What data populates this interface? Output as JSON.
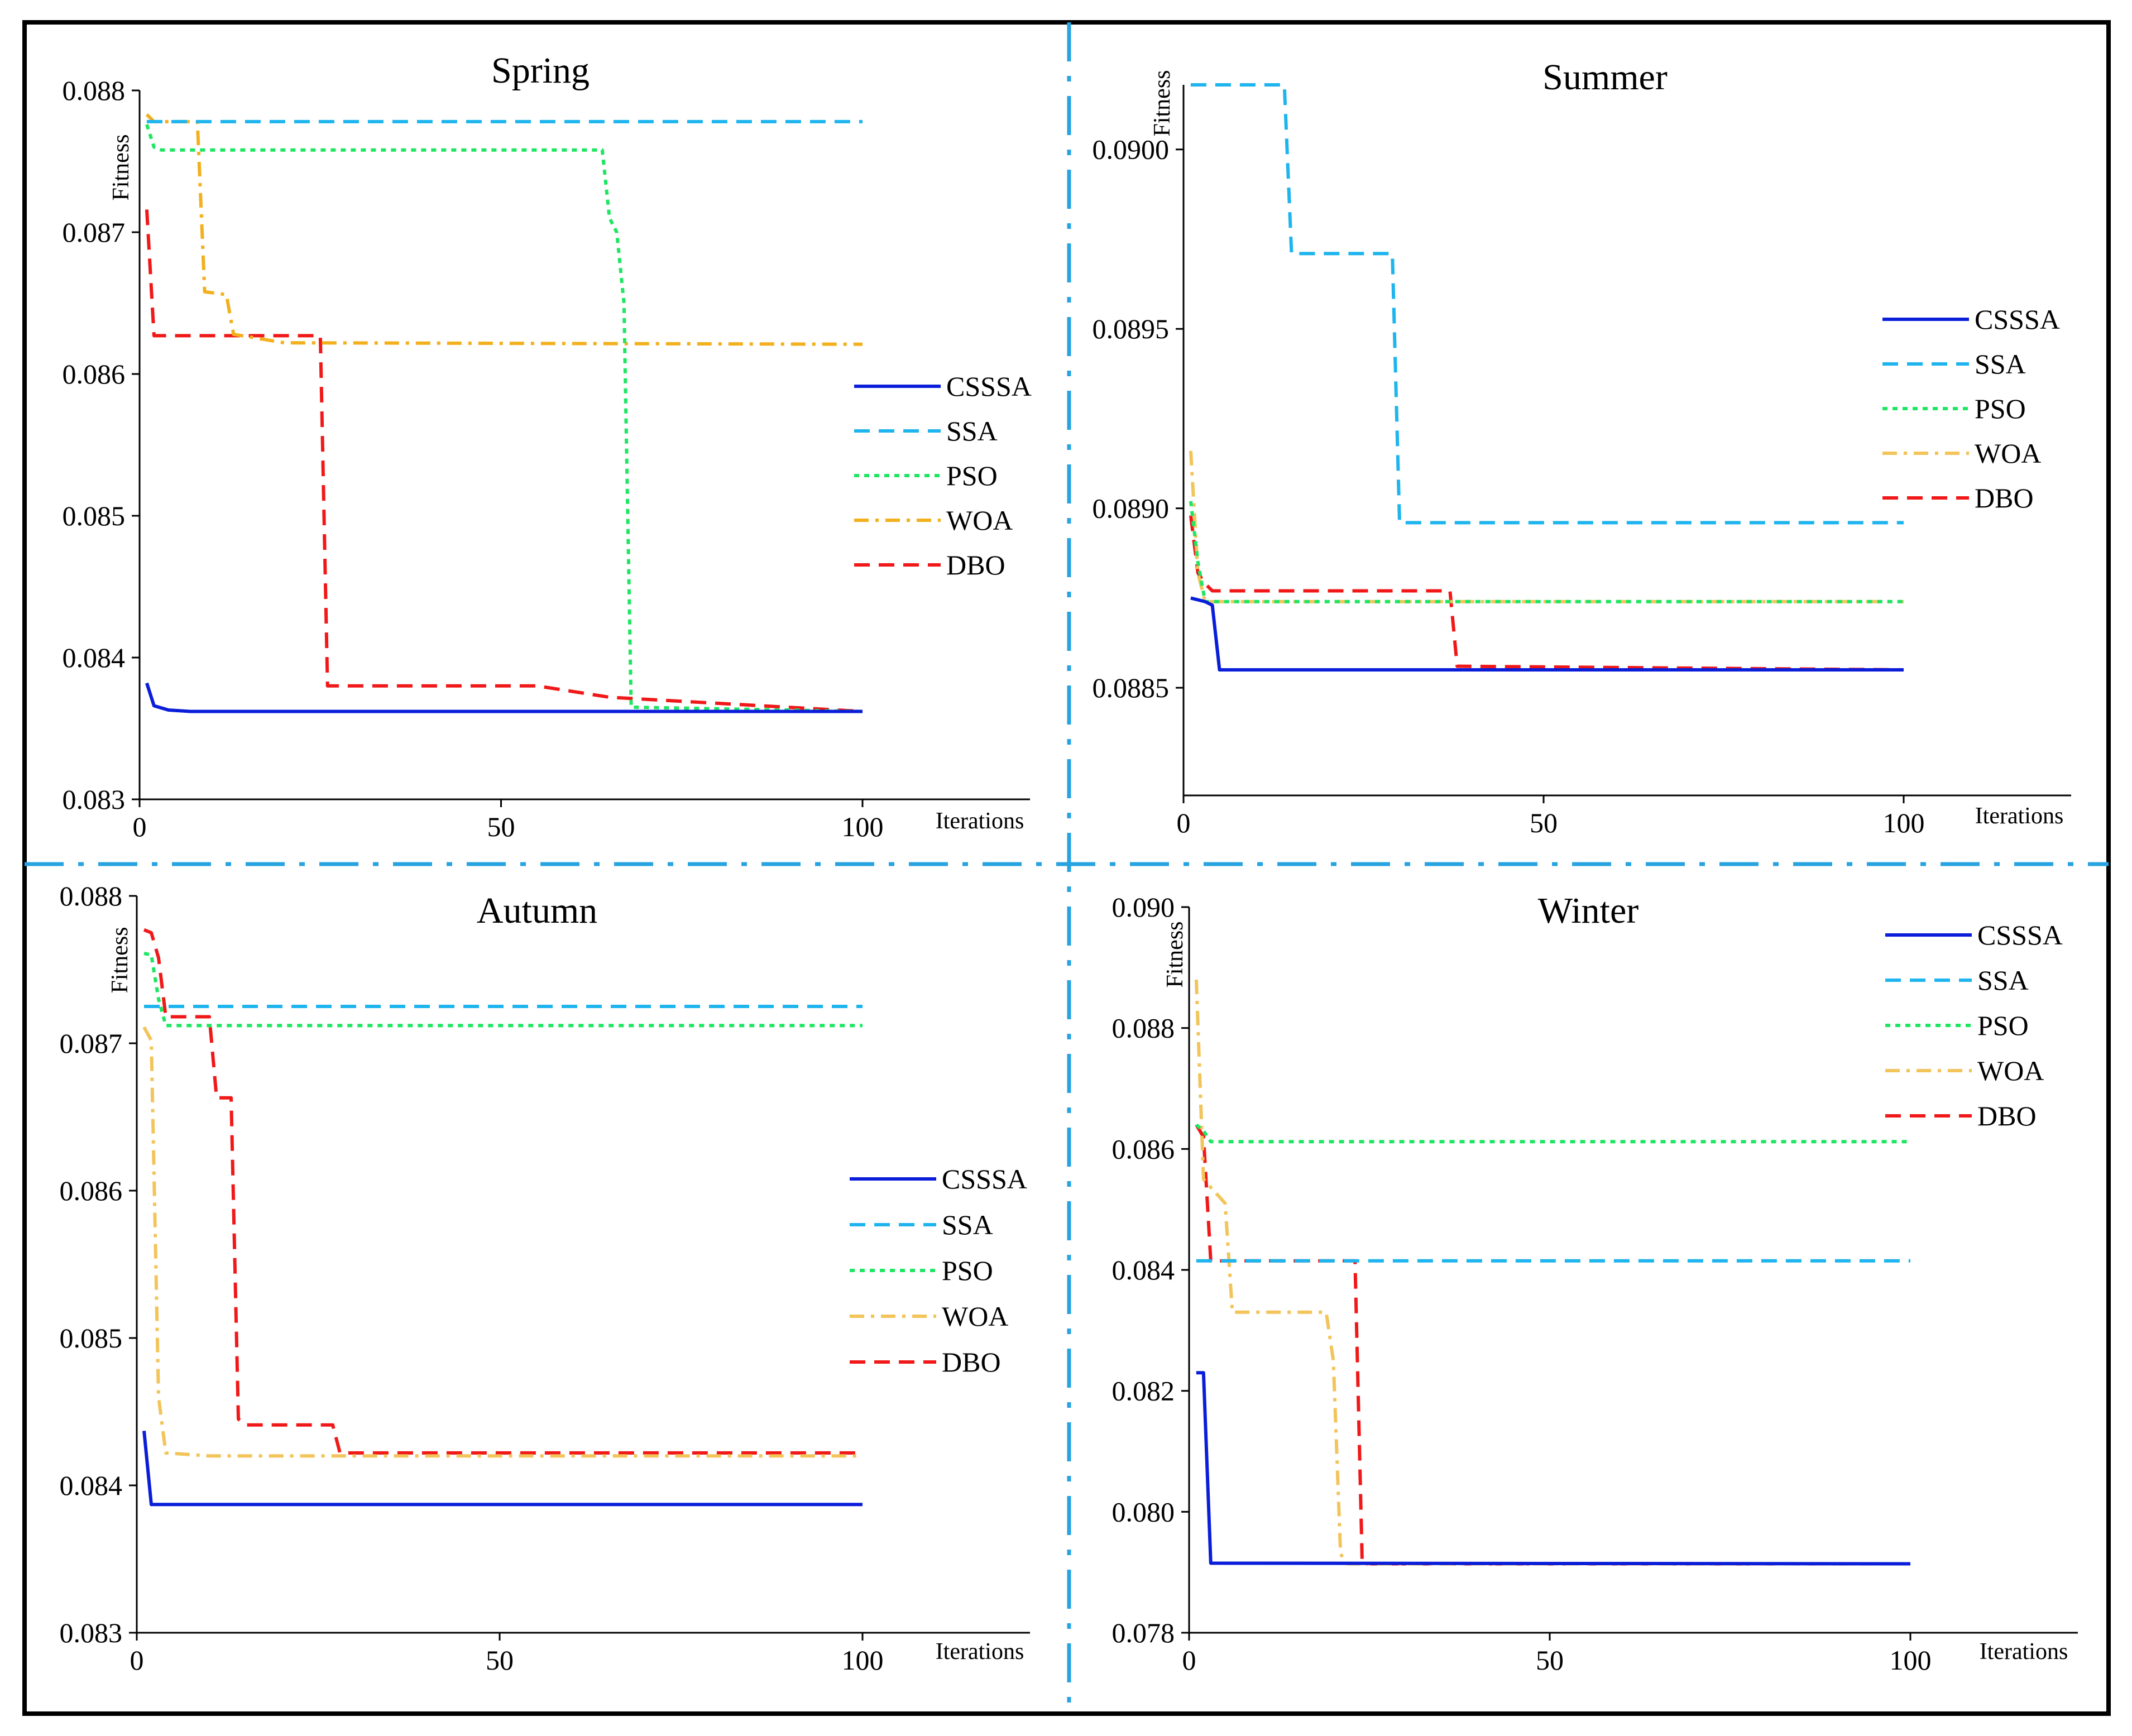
{
  "figure": {
    "separator_color": "#27A3E0",
    "border_color": "#000000"
  },
  "chart_data": [
    {
      "type": "line",
      "title": "Spring",
      "xlabel": "Iterations",
      "ylabel": "Fitness",
      "xlim": [
        0,
        100
      ],
      "ylim": [
        0.083,
        0.088
      ],
      "xticks": [
        0,
        50,
        100
      ],
      "xtick_labels": [
        "0",
        "50",
        "100"
      ],
      "yticks": [
        0.083,
        0.084,
        0.085,
        0.086,
        0.087,
        0.088
      ],
      "ytick_labels": [
        "0.083",
        "0.084",
        "0.085",
        "0.086",
        "0.087",
        "0.088"
      ],
      "legend_position": "right",
      "series": [
        {
          "name": "CSSSA",
          "color": "#0A1ED9",
          "dash": "solid",
          "x": [
            1,
            2,
            4,
            7,
            100
          ],
          "y": [
            0.08382,
            0.08366,
            0.08363,
            0.08362,
            0.08362
          ]
        },
        {
          "name": "SSA",
          "color": "#1EB4EE",
          "dash": "dash",
          "x": [
            1,
            100
          ],
          "y": [
            0.08778,
            0.08778
          ]
        },
        {
          "name": "PSO",
          "color": "#1EE662",
          "dash": "dot",
          "x": [
            1,
            2,
            3,
            64,
            65,
            66,
            67,
            68,
            100
          ],
          "y": [
            0.08776,
            0.0876,
            0.08758,
            0.08758,
            0.0871,
            0.087,
            0.0865,
            0.08365,
            0.08362
          ]
        },
        {
          "name": "WOA",
          "color": "#F2B01E",
          "dash": "dashdot",
          "x": [
            1,
            2,
            8,
            9,
            12,
            13,
            20,
            100
          ],
          "y": [
            0.08783,
            0.08778,
            0.08778,
            0.08658,
            0.08656,
            0.08628,
            0.08622,
            0.08621
          ]
        },
        {
          "name": "DBO",
          "color": "#F01818",
          "dash": "dash",
          "x": [
            1,
            2,
            25,
            26,
            55,
            65,
            100
          ],
          "y": [
            0.08716,
            0.08627,
            0.08627,
            0.0838,
            0.0838,
            0.08372,
            0.08362
          ]
        }
      ]
    },
    {
      "type": "line",
      "title": "Summer",
      "xlabel": "Iterations",
      "ylabel": "Fitness",
      "xlim": [
        0,
        100
      ],
      "ylim": [
        0.0882,
        0.09018
      ],
      "xticks": [
        0,
        50,
        100
      ],
      "xtick_labels": [
        "0",
        "50",
        "100"
      ],
      "yticks": [
        0.0885,
        0.089,
        0.0895,
        0.09
      ],
      "ytick_labels": [
        "0.0885",
        "0.0890",
        "0.0895",
        "0.0900"
      ],
      "legend_position": "right",
      "series": [
        {
          "name": "CSSSA",
          "color": "#0A1ED9",
          "dash": "solid",
          "x": [
            1,
            3,
            4,
            5,
            100
          ],
          "y": [
            0.08875,
            0.08874,
            0.08873,
            0.08855,
            0.08855
          ]
        },
        {
          "name": "SSA",
          "color": "#1EB4EE",
          "dash": "dash",
          "x": [
            1,
            14,
            15,
            29,
            30,
            100
          ],
          "y": [
            0.09018,
            0.09018,
            0.08971,
            0.08971,
            0.08896,
            0.08896
          ]
        },
        {
          "name": "PSO",
          "color": "#1EE662",
          "dash": "dot",
          "x": [
            1,
            2,
            3,
            100
          ],
          "y": [
            0.08902,
            0.08885,
            0.08874,
            0.08874
          ]
        },
        {
          "name": "WOA",
          "color": "#F2C45A",
          "dash": "dashdot",
          "x": [
            1,
            2,
            3,
            100
          ],
          "y": [
            0.08916,
            0.08882,
            0.08874,
            0.08874
          ]
        },
        {
          "name": "DBO",
          "color": "#F01818",
          "dash": "dash",
          "x": [
            1,
            2,
            3,
            4,
            37,
            38,
            100
          ],
          "y": [
            0.08898,
            0.08882,
            0.08879,
            0.08877,
            0.08877,
            0.08856,
            0.08855
          ]
        }
      ]
    },
    {
      "type": "line",
      "title": "Autumn",
      "xlabel": "Iterations",
      "ylabel": "Fitness",
      "xlim": [
        0,
        100
      ],
      "ylim": [
        0.083,
        0.088
      ],
      "xticks": [
        0,
        50,
        100
      ],
      "xtick_labels": [
        "0",
        "50",
        "100"
      ],
      "yticks": [
        0.083,
        0.084,
        0.085,
        0.086,
        0.087,
        0.088
      ],
      "ytick_labels": [
        "0.083",
        "0.084",
        "0.085",
        "0.086",
        "0.087",
        "0.088"
      ],
      "legend_position": "right",
      "series": [
        {
          "name": "CSSSA",
          "color": "#0A1ED9",
          "dash": "solid",
          "x": [
            1,
            2,
            100
          ],
          "y": [
            0.08437,
            0.08387,
            0.08387
          ]
        },
        {
          "name": "SSA",
          "color": "#1EB4EE",
          "dash": "dash",
          "x": [
            1,
            100
          ],
          "y": [
            0.08725,
            0.08725
          ]
        },
        {
          "name": "PSO",
          "color": "#1EE662",
          "dash": "dot",
          "x": [
            1,
            2,
            3,
            4,
            100
          ],
          "y": [
            0.08761,
            0.0876,
            0.0873,
            0.08712,
            0.08712
          ]
        },
        {
          "name": "WOA",
          "color": "#F2C45A",
          "dash": "dashdot",
          "x": [
            1,
            2,
            3,
            4,
            10,
            100
          ],
          "y": [
            0.08711,
            0.08702,
            0.0846,
            0.08422,
            0.0842,
            0.0842
          ]
        },
        {
          "name": "DBO",
          "color": "#F01818",
          "dash": "dash",
          "x": [
            1,
            2,
            3,
            4,
            10,
            11,
            13,
            14,
            15,
            27,
            28,
            100
          ],
          "y": [
            0.08777,
            0.08775,
            0.08758,
            0.08718,
            0.08718,
            0.08663,
            0.08663,
            0.08445,
            0.08441,
            0.08441,
            0.08422,
            0.08422
          ]
        }
      ]
    },
    {
      "type": "line",
      "title": "Winter",
      "xlabel": "Iterations",
      "ylabel": "Fitness",
      "xlim": [
        0,
        100
      ],
      "ylim": [
        0.078,
        0.09
      ],
      "xticks": [
        0,
        50,
        100
      ],
      "xtick_labels": [
        "0",
        "50",
        "100"
      ],
      "yticks": [
        0.078,
        0.08,
        0.082,
        0.084,
        0.086,
        0.088,
        0.09
      ],
      "ytick_labels": [
        "0.078",
        "0.080",
        "0.082",
        "0.084",
        "0.086",
        "0.088",
        "0.090"
      ],
      "legend_position": "top-right",
      "series": [
        {
          "name": "CSSSA",
          "color": "#0A1ED9",
          "dash": "solid",
          "x": [
            1,
            2,
            3,
            100
          ],
          "y": [
            0.0823,
            0.0823,
            0.07915,
            0.07914
          ]
        },
        {
          "name": "SSA",
          "color": "#1EB4EE",
          "dash": "dash",
          "x": [
            1,
            100
          ],
          "y": [
            0.08415,
            0.08415
          ]
        },
        {
          "name": "PSO",
          "color": "#1EE662",
          "dash": "dot",
          "x": [
            1,
            2,
            3,
            100
          ],
          "y": [
            0.0864,
            0.0863,
            0.08612,
            0.08612
          ]
        },
        {
          "name": "WOA",
          "color": "#F2C45A",
          "dash": "dashdot",
          "x": [
            1,
            2,
            5,
            6,
            19,
            20,
            21,
            22,
            100
          ],
          "y": [
            0.0888,
            0.0855,
            0.0851,
            0.0833,
            0.0833,
            0.0825,
            0.0793,
            0.07914,
            0.07914
          ]
        },
        {
          "name": "DBO",
          "color": "#F01818",
          "dash": "dash",
          "x": [
            1,
            2,
            3,
            23,
            24,
            100
          ],
          "y": [
            0.0864,
            0.0862,
            0.08415,
            0.08415,
            0.07914,
            0.07914
          ]
        }
      ]
    }
  ]
}
